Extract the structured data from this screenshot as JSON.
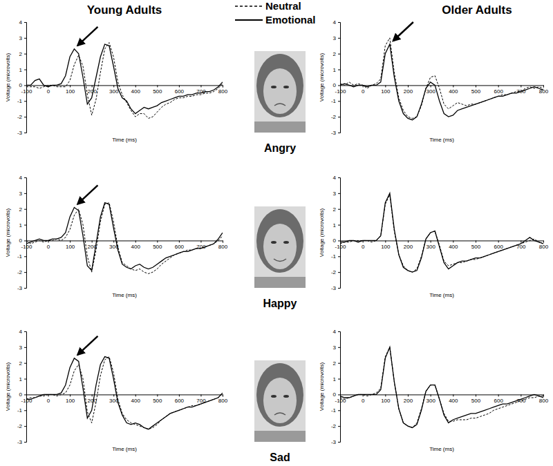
{
  "columns": [
    "Young Adults",
    "Older Adults"
  ],
  "rows": [
    "Angry",
    "Happy",
    "Sad"
  ],
  "chart_data": [
    {
      "type": "line",
      "legend": "top",
      "x_label": "Time (ms)",
      "y_label": "Voltage (microvolts)",
      "x": [
        -100,
        -80,
        -60,
        -40,
        -20,
        0,
        20,
        40,
        60,
        80,
        100,
        120,
        140,
        160,
        180,
        200,
        220,
        240,
        260,
        280,
        300,
        320,
        340,
        360,
        380,
        400,
        420,
        440,
        460,
        480,
        500,
        520,
        540,
        560,
        580,
        600,
        620,
        640,
        660,
        680,
        700,
        720,
        740,
        760,
        780,
        800
      ],
      "xlim": [
        -100,
        800
      ],
      "xticks": [
        -100,
        0,
        100,
        200,
        300,
        400,
        500,
        600,
        700,
        800
      ],
      "ylim": [
        -3,
        4
      ],
      "yticks": [
        -3,
        -2,
        -1,
        0,
        1,
        2,
        3,
        4
      ],
      "annotations": [
        {
          "x": 120,
          "y": 2.3
        }
      ],
      "series": [
        {
          "name": "Neutral",
          "color": "#000000",
          "line_style": "dashed",
          "values": [
            -0.1,
            -0.1,
            -0.1,
            -0.2,
            -0.1,
            0,
            0,
            -0.1,
            -0.1,
            -0.1,
            0.3,
            1.3,
            1.9,
            1.2,
            -0.6,
            -1.9,
            -0.9,
            0.8,
            2.3,
            2.7,
            1.8,
            0.2,
            -0.6,
            -1.1,
            -1.6,
            -2.0,
            -1.8,
            -1.8,
            -2.1,
            -2.0,
            -1.7,
            -1.4,
            -1.2,
            -1.1,
            -0.9,
            -0.8,
            -0.8,
            -0.7,
            -0.7,
            -0.6,
            -0.6,
            -0.5,
            -0.5,
            -0.4,
            -0.2,
            0.1
          ]
        },
        {
          "name": "Emotional",
          "color": "#000000",
          "line_style": "solid",
          "values": [
            0,
            0,
            0.3,
            0.4,
            0,
            -0.1,
            0,
            0,
            0.1,
            0.6,
            1.8,
            2.3,
            2.0,
            0.5,
            -1.2,
            -0.8,
            0.5,
            1.8,
            2.6,
            2.5,
            1.2,
            -0.2,
            -0.8,
            -1.0,
            -1.5,
            -1.8,
            -1.6,
            -1.4,
            -1.5,
            -1.4,
            -1.3,
            -1.1,
            -1.0,
            -0.9,
            -0.8,
            -0.7,
            -0.7,
            -0.6,
            -0.6,
            -0.5,
            -0.5,
            -0.4,
            -0.4,
            -0.3,
            -0.1,
            0.2
          ]
        }
      ]
    },
    {
      "type": "line",
      "x_label": "Time (ms)",
      "y_label": "Voltage (microvolts)",
      "x": [
        -100,
        -80,
        -60,
        -40,
        -20,
        0,
        20,
        40,
        60,
        80,
        100,
        120,
        140,
        160,
        180,
        200,
        220,
        240,
        260,
        280,
        300,
        320,
        340,
        360,
        380,
        400,
        420,
        440,
        460,
        480,
        500,
        520,
        540,
        560,
        580,
        600,
        620,
        640,
        660,
        680,
        700,
        720,
        740,
        760,
        780,
        800
      ],
      "xlim": [
        -100,
        800
      ],
      "xticks": [
        -100,
        0,
        100,
        200,
        300,
        400,
        500,
        600,
        700,
        800
      ],
      "ylim": [
        -3,
        4
      ],
      "yticks": [
        -3,
        -2,
        -1,
        0,
        1,
        2,
        3,
        4
      ],
      "annotations": [
        {
          "x": 120,
          "y": 2.6
        }
      ],
      "series": [
        {
          "name": "Neutral",
          "color": "#000000",
          "line_style": "dashed",
          "values": [
            0.1,
            0,
            0.2,
            0,
            0.1,
            0,
            -0.2,
            0,
            0.1,
            0.4,
            2.5,
            3.0,
            0.8,
            -0.8,
            -1.6,
            -2.0,
            -2.1,
            -2.0,
            -1.3,
            -0.2,
            0.5,
            0.6,
            -0.2,
            -1.2,
            -1.5,
            -1.3,
            -1.1,
            -1.2,
            -1.3,
            -1.2,
            -1.2,
            -1.1,
            -1.0,
            -0.9,
            -0.8,
            -0.7,
            -0.6,
            -0.6,
            -0.5,
            -0.4,
            -0.4,
            -0.2,
            -0.1,
            -0.2,
            -0.1,
            -0.2
          ]
        },
        {
          "name": "Emotional",
          "color": "#000000",
          "line_style": "solid",
          "values": [
            0,
            0.1,
            0,
            -0.1,
            0,
            0,
            -0.1,
            0,
            0,
            0.2,
            2.0,
            2.6,
            0.5,
            -1.0,
            -1.8,
            -2.1,
            -2.2,
            -2.0,
            -1.2,
            -0.2,
            0.2,
            0.0,
            -1.0,
            -1.8,
            -2.0,
            -1.9,
            -1.6,
            -1.5,
            -1.4,
            -1.3,
            -1.2,
            -1.1,
            -1.0,
            -0.9,
            -0.8,
            -0.7,
            -0.7,
            -0.6,
            -0.5,
            -0.5,
            -0.4,
            -0.3,
            -0.2,
            -0.1,
            -0.2,
            -0.3
          ]
        }
      ]
    },
    {
      "type": "line",
      "x_label": "Time (ms)",
      "y_label": "Voltage (microvolts)",
      "x": [
        -100,
        -80,
        -60,
        -40,
        -20,
        0,
        20,
        40,
        60,
        80,
        100,
        120,
        140,
        160,
        180,
        200,
        220,
        240,
        260,
        280,
        300,
        320,
        340,
        360,
        380,
        400,
        420,
        440,
        460,
        480,
        500,
        520,
        540,
        560,
        580,
        600,
        620,
        640,
        660,
        680,
        700,
        720,
        740,
        760,
        780,
        800
      ],
      "xlim": [
        -100,
        800
      ],
      "xticks": [
        -100,
        0,
        100,
        200,
        300,
        400,
        500,
        600,
        700,
        800
      ],
      "ylim": [
        -3,
        4
      ],
      "yticks": [
        -3,
        -2,
        -1,
        0,
        1,
        2,
        3,
        4
      ],
      "annotations": [
        {
          "x": 120,
          "y": 2.1
        }
      ],
      "series": [
        {
          "name": "Neutral",
          "color": "#000000",
          "line_style": "dashed",
          "values": [
            0,
            -0.2,
            -0.1,
            0,
            -0.1,
            0,
            0,
            0.1,
            0,
            0.2,
            0.7,
            1.6,
            2.0,
            1.0,
            -1.0,
            -2.0,
            -0.6,
            1.2,
            2.3,
            2.4,
            1.2,
            -0.4,
            -1.4,
            -1.6,
            -1.8,
            -1.9,
            -1.8,
            -2.0,
            -2.1,
            -2.0,
            -1.8,
            -1.5,
            -1.3,
            -1.1,
            -0.9,
            -0.8,
            -0.7,
            -0.6,
            -0.6,
            -0.5,
            -0.5,
            -0.4,
            -0.3,
            -0.2,
            0,
            0.3
          ]
        },
        {
          "name": "Emotional",
          "color": "#000000",
          "line_style": "solid",
          "values": [
            -0.2,
            -0.1,
            0,
            0.1,
            0,
            0,
            0.1,
            0.1,
            0.2,
            0.5,
            1.5,
            2.1,
            1.9,
            0.3,
            -1.6,
            -1.9,
            -0.2,
            1.5,
            2.4,
            2.3,
            0.8,
            -0.6,
            -1.5,
            -1.7,
            -1.8,
            -1.6,
            -1.5,
            -1.7,
            -1.8,
            -1.7,
            -1.5,
            -1.3,
            -1.1,
            -1.0,
            -0.9,
            -0.8,
            -0.7,
            -0.7,
            -0.6,
            -0.5,
            -0.5,
            -0.4,
            -0.3,
            -0.2,
            0.1,
            0.5
          ]
        }
      ]
    },
    {
      "type": "line",
      "x_label": "Time (ms)",
      "y_label": "Voltage (microvolts)",
      "x": [
        -100,
        -80,
        -60,
        -40,
        -20,
        0,
        20,
        40,
        60,
        80,
        100,
        120,
        140,
        160,
        180,
        200,
        220,
        240,
        260,
        280,
        300,
        320,
        340,
        360,
        380,
        400,
        420,
        440,
        460,
        480,
        500,
        520,
        540,
        560,
        580,
        600,
        620,
        640,
        660,
        680,
        700,
        720,
        740,
        760,
        780,
        800
      ],
      "xlim": [
        -100,
        800
      ],
      "xticks": [
        -100,
        0,
        100,
        200,
        300,
        400,
        500,
        600,
        700,
        800
      ],
      "ylim": [
        -3,
        4
      ],
      "yticks": [
        -3,
        -2,
        -1,
        0,
        1,
        2,
        3,
        4
      ],
      "series": [
        {
          "name": "Neutral",
          "color": "#000000",
          "line_style": "dashed",
          "values": [
            -0.2,
            -0.1,
            -0.1,
            0,
            0,
            0,
            0,
            -0.1,
            0,
            0.3,
            2.3,
            2.9,
            0.6,
            -0.9,
            -1.6,
            -1.9,
            -2.0,
            -1.8,
            -1.0,
            0.1,
            0.5,
            0.6,
            -0.3,
            -1.3,
            -1.6,
            -1.5,
            -1.4,
            -1.4,
            -1.3,
            -1.2,
            -1.2,
            -1.1,
            -1.0,
            -0.9,
            -0.8,
            -0.7,
            -0.6,
            -0.5,
            -0.4,
            -0.3,
            -0.2,
            -0.1,
            0,
            0.1,
            -0.1,
            -0.2
          ]
        },
        {
          "name": "Emotional",
          "color": "#000000",
          "line_style": "solid",
          "values": [
            -0.1,
            -0.1,
            0,
            0,
            -0.1,
            0,
            0,
            0,
            0,
            0.3,
            2.4,
            3.0,
            0.7,
            -0.9,
            -1.7,
            -1.9,
            -2.0,
            -1.9,
            -1.1,
            0.1,
            0.5,
            0.6,
            -0.4,
            -1.4,
            -1.8,
            -1.6,
            -1.4,
            -1.3,
            -1.3,
            -1.2,
            -1.1,
            -1.1,
            -1.0,
            -0.9,
            -0.8,
            -0.7,
            -0.6,
            -0.5,
            -0.4,
            -0.3,
            -0.2,
            0,
            0.2,
            0,
            -0.1,
            -0.2
          ]
        }
      ]
    },
    {
      "type": "line",
      "x_label": "Time (ms)",
      "y_label": "Voltage (microvolts)",
      "x": [
        -100,
        -80,
        -60,
        -40,
        -20,
        0,
        20,
        40,
        60,
        80,
        100,
        120,
        140,
        160,
        180,
        200,
        220,
        240,
        260,
        280,
        300,
        320,
        340,
        360,
        380,
        400,
        420,
        440,
        460,
        480,
        500,
        520,
        540,
        560,
        580,
        600,
        620,
        640,
        660,
        680,
        700,
        720,
        740,
        760,
        780,
        800
      ],
      "xlim": [
        -100,
        800
      ],
      "xticks": [
        -100,
        0,
        100,
        200,
        300,
        400,
        500,
        600,
        700,
        800
      ],
      "ylim": [
        -3,
        4
      ],
      "yticks": [
        -3,
        -2,
        -1,
        0,
        1,
        2,
        3,
        4
      ],
      "annotations": [
        {
          "x": 120,
          "y": 2.3
        }
      ],
      "series": [
        {
          "name": "Neutral",
          "color": "#000000",
          "line_style": "dashed",
          "values": [
            -0.3,
            -0.2,
            -0.2,
            -0.1,
            -0.1,
            0,
            0,
            -0.1,
            0,
            0.1,
            0.6,
            1.5,
            1.9,
            1.0,
            -1.1,
            -1.8,
            -0.5,
            1.2,
            2.2,
            2.4,
            1.4,
            -0.3,
            -1.2,
            -1.6,
            -1.8,
            -1.9,
            -2.0,
            -2.1,
            -2.2,
            -2.1,
            -1.9,
            -1.6,
            -1.4,
            -1.2,
            -1.1,
            -1.0,
            -0.9,
            -0.8,
            -0.7,
            -0.7,
            -0.6,
            -0.5,
            -0.4,
            -0.3,
            -0.2,
            0.1
          ]
        },
        {
          "name": "Emotional",
          "color": "#000000",
          "line_style": "solid",
          "values": [
            -0.3,
            -0.3,
            -0.2,
            -0.1,
            0,
            0,
            0,
            0,
            0.1,
            0.6,
            1.7,
            2.3,
            2.1,
            0.4,
            -1.5,
            -1.0,
            0.6,
            1.9,
            2.4,
            2.3,
            1.0,
            -0.5,
            -1.3,
            -1.8,
            -1.9,
            -1.8,
            -1.9,
            -2.1,
            -2.2,
            -2.0,
            -1.8,
            -1.6,
            -1.4,
            -1.2,
            -1.1,
            -1.0,
            -0.9,
            -0.8,
            -0.8,
            -0.7,
            -0.6,
            -0.5,
            -0.4,
            -0.3,
            -0.2,
            0.1
          ]
        }
      ]
    },
    {
      "type": "line",
      "x_label": "Time (ms)",
      "y_label": "Voltage (microvolts)",
      "x": [
        -100,
        -80,
        -60,
        -40,
        -20,
        0,
        20,
        40,
        60,
        80,
        100,
        120,
        140,
        160,
        180,
        200,
        220,
        240,
        260,
        280,
        300,
        320,
        340,
        360,
        380,
        400,
        420,
        440,
        460,
        480,
        500,
        520,
        540,
        560,
        580,
        600,
        620,
        640,
        660,
        680,
        700,
        720,
        740,
        760,
        780,
        800
      ],
      "xlim": [
        -100,
        800
      ],
      "xticks": [
        -100,
        0,
        100,
        200,
        300,
        400,
        500,
        600,
        700,
        800
      ],
      "ylim": [
        -3,
        4
      ],
      "yticks": [
        -3,
        -2,
        -1,
        0,
        1,
        2,
        3,
        4
      ],
      "series": [
        {
          "name": "Neutral",
          "color": "#000000",
          "line_style": "dashed",
          "values": [
            -0.2,
            -0.3,
            -0.2,
            -0.1,
            0,
            0,
            -0.1,
            0,
            0.1,
            0.4,
            2.4,
            3.0,
            0.8,
            -0.9,
            -1.8,
            -2.0,
            -2.1,
            -1.8,
            -0.9,
            0.2,
            0.6,
            0.6,
            -0.3,
            -1.2,
            -1.7,
            -1.7,
            -1.6,
            -1.6,
            -1.6,
            -1.5,
            -1.5,
            -1.4,
            -1.3,
            -1.2,
            -1.0,
            -0.9,
            -0.8,
            -0.7,
            -0.6,
            -0.5,
            -0.4,
            -0.3,
            -0.2,
            -0.2,
            -0.1,
            -0.1
          ]
        },
        {
          "name": "Emotional",
          "color": "#000000",
          "line_style": "solid",
          "values": [
            -0.1,
            -0.2,
            -0.2,
            -0.1,
            0,
            0,
            0,
            0,
            0,
            0.3,
            2.3,
            3.0,
            0.8,
            -0.9,
            -1.8,
            -2.0,
            -2.1,
            -1.9,
            -1.0,
            0.2,
            0.6,
            0.6,
            -0.3,
            -1.3,
            -1.8,
            -1.6,
            -1.5,
            -1.4,
            -1.3,
            -1.2,
            -1.2,
            -1.1,
            -1.0,
            -0.9,
            -0.8,
            -0.7,
            -0.6,
            -0.6,
            -0.5,
            -0.4,
            -0.3,
            -0.2,
            -0.1,
            0,
            -0.1,
            -0.2
          ]
        }
      ]
    }
  ]
}
